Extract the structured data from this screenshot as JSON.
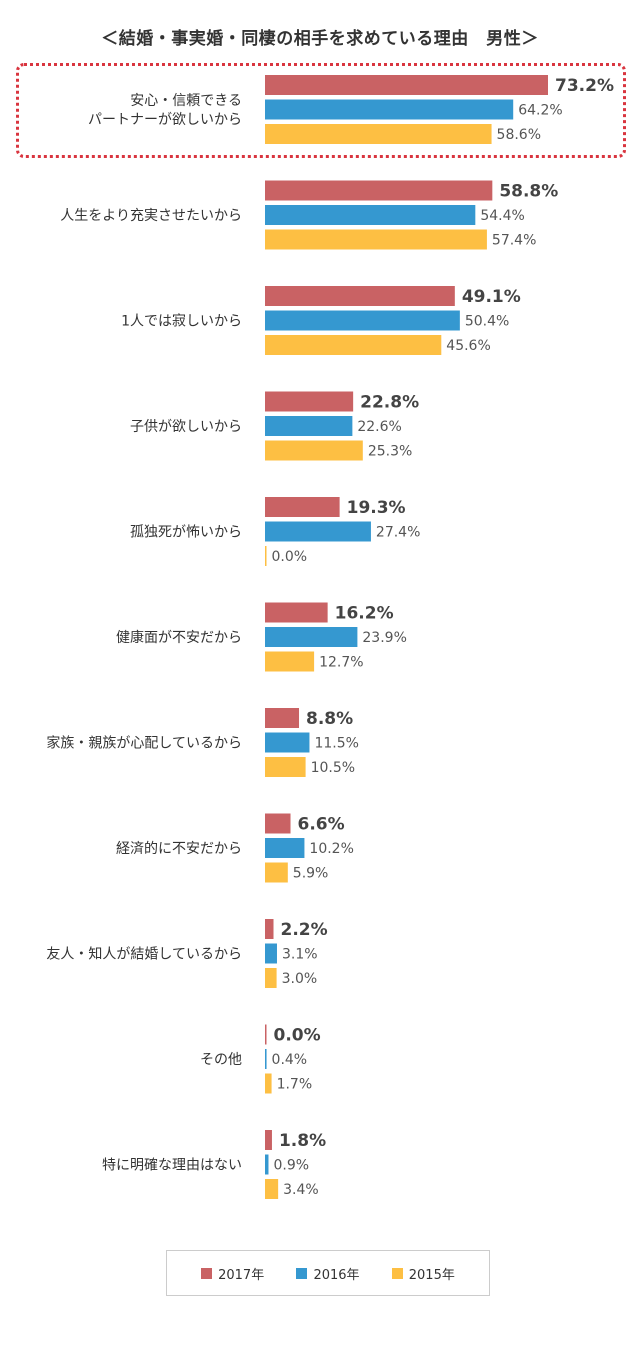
{
  "chart_data": {
    "type": "bar",
    "orientation": "horizontal",
    "title": "＜結婚・事実婚・同棲の相手を求めている理由　男性＞",
    "categories": [
      "安心・信頼できる\nパートナーが欲しいから",
      "人生をより充実させたいから",
      "1人では寂しいから",
      "子供が欲しいから",
      "孤独死が怖いから",
      "健康面が不安だから",
      "家族・親族が心配しているから",
      "経済的に不安だから",
      "友人・知人が結婚しているから",
      "その他",
      "特に明確な理由はない"
    ],
    "series": [
      {
        "name": "2017年",
        "color": "#c96264",
        "values": [
          73.2,
          58.8,
          49.1,
          22.8,
          19.3,
          16.2,
          8.8,
          6.6,
          2.2,
          0.0,
          1.8
        ]
      },
      {
        "name": "2016年",
        "color": "#3598d0",
        "values": [
          64.2,
          54.4,
          50.4,
          22.6,
          27.4,
          23.9,
          11.5,
          10.2,
          3.1,
          0.4,
          0.9
        ]
      },
      {
        "name": "2015年",
        "color": "#fdbf43",
        "values": [
          58.6,
          57.4,
          45.6,
          25.3,
          0.0,
          12.7,
          10.5,
          5.9,
          3.0,
          1.7,
          3.4
        ]
      }
    ],
    "value_suffix": "%",
    "highlighted_category_index": 0,
    "legend_position": "bottom",
    "grid": false,
    "xlim": [
      0,
      75
    ]
  }
}
